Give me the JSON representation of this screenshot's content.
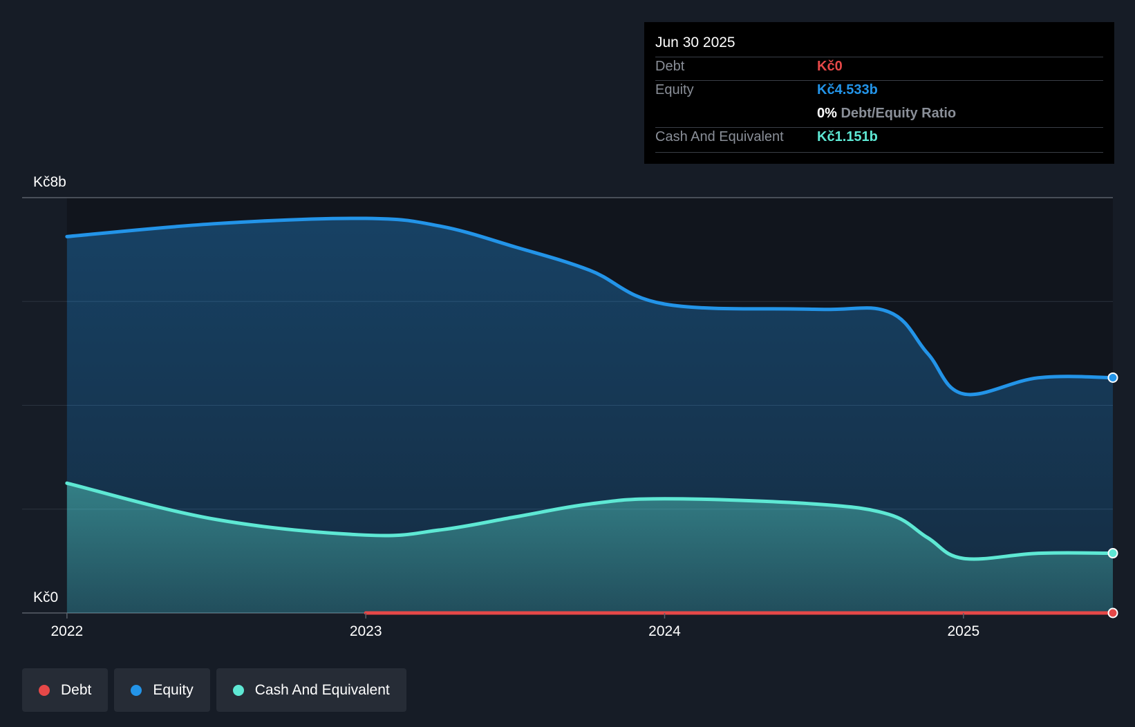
{
  "colors": {
    "debt": "#e64848",
    "equity": "#2394e8",
    "cash": "#5ee8d4",
    "background": "#161c26",
    "plot_background": "#11151d"
  },
  "tooltip": {
    "date": "Jun 30 2025",
    "debt_label": "Debt",
    "debt_value": "Kč0",
    "equity_label": "Equity",
    "equity_value": "Kč4.533b",
    "ratio_value": "0%",
    "ratio_label": "Debt/Equity Ratio",
    "cash_label": "Cash And Equivalent",
    "cash_value": "Kč1.151b"
  },
  "legend": {
    "debt": "Debt",
    "equity": "Equity",
    "cash": "Cash And Equivalent"
  },
  "chart_data": {
    "type": "area",
    "title": "",
    "xlabel": "",
    "ylabel": "",
    "y_unit": "Kč (billions)",
    "ylim": [
      0,
      8
    ],
    "y_tick_labels": [
      {
        "value": 8,
        "label": "Kč8b"
      },
      {
        "value": 0,
        "label": "Kč0"
      }
    ],
    "y_gridlines": [
      0,
      2,
      4,
      6,
      8
    ],
    "xlim": [
      2021.85,
      2025.5
    ],
    "x_ticks": [
      {
        "value": 2022,
        "label": "2022"
      },
      {
        "value": 2023,
        "label": "2023"
      },
      {
        "value": 2024,
        "label": "2024"
      },
      {
        "value": 2025,
        "label": "2025"
      }
    ],
    "series": [
      {
        "name": "Equity",
        "key": "equity",
        "x": [
          2022.0,
          2022.5,
          2023.0,
          2023.25,
          2023.5,
          2023.75,
          2024.0,
          2024.5,
          2024.75,
          2024.88,
          2025.0,
          2025.25,
          2025.5
        ],
        "values": [
          7.25,
          7.5,
          7.6,
          7.45,
          7.05,
          6.6,
          5.95,
          5.85,
          5.8,
          5.0,
          4.22,
          4.53,
          4.533
        ]
      },
      {
        "name": "Cash And Equivalent",
        "key": "cash",
        "x": [
          2022.0,
          2022.5,
          2023.0,
          2023.25,
          2023.5,
          2023.75,
          2024.0,
          2024.5,
          2024.75,
          2024.88,
          2025.0,
          2025.25,
          2025.5
        ],
        "values": [
          2.5,
          1.8,
          1.5,
          1.6,
          1.85,
          2.1,
          2.2,
          2.1,
          1.9,
          1.45,
          1.05,
          1.15,
          1.151
        ]
      },
      {
        "name": "Debt",
        "key": "debt",
        "x": [
          2023.0,
          2025.5
        ],
        "values": [
          0,
          0
        ]
      }
    ]
  }
}
